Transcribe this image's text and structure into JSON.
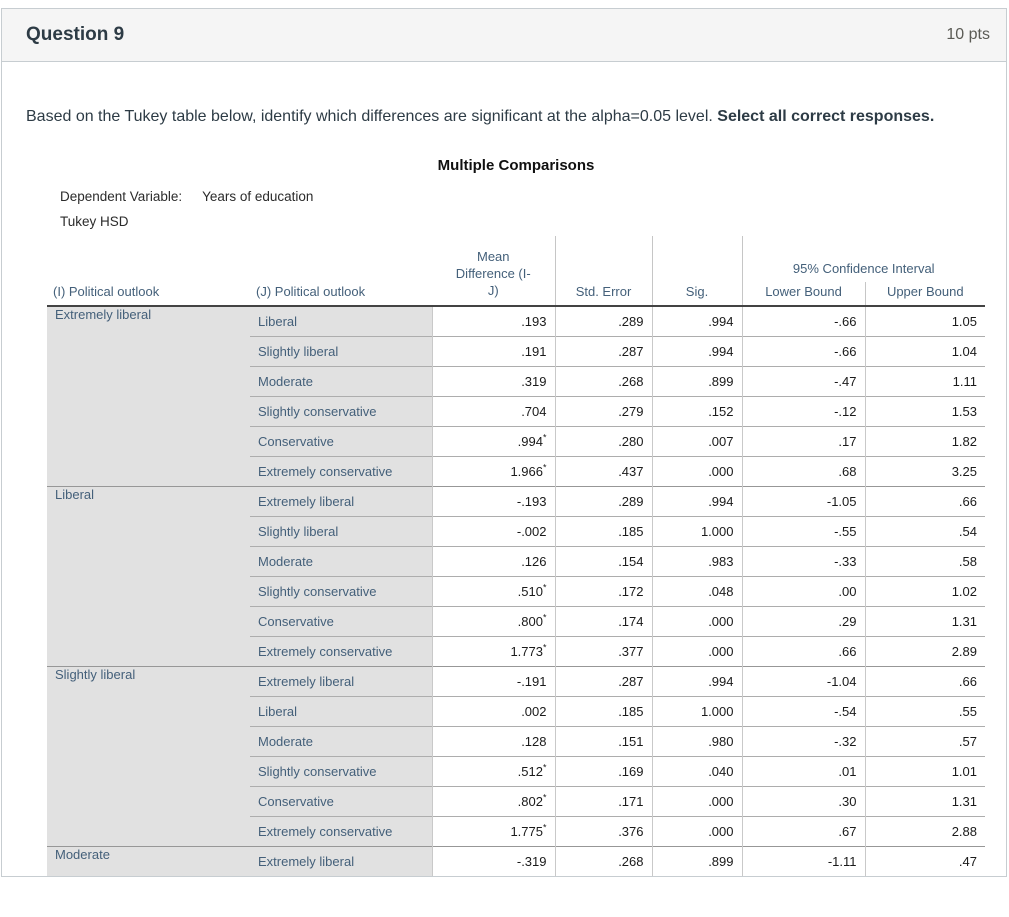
{
  "question": {
    "title": "Question 9",
    "points": "10 pts",
    "prompt_regular": "Based on the Tukey table below, identify which differences are significant at the alpha=0.05 level. ",
    "prompt_bold": "Select all correct responses."
  },
  "spss": {
    "title": "Multiple Comparisons",
    "dependent_variable_label": "Dependent Variable:",
    "dependent_variable_value": "Years of education",
    "method": "Tukey HSD",
    "columns": {
      "i": "(I) Political outlook",
      "j": "(J) Political outlook",
      "mean_diff": "Mean\nDifference (I-\nJ)",
      "std_error": "Std. Error",
      "sig": "Sig.",
      "ci_spanner": "95% Confidence Interval",
      "lower": "Lower Bound",
      "upper": "Upper Bound"
    },
    "colors": {
      "label_text": "#44607a",
      "label_bg": "#e1e1e1",
      "header_rule": "#434343"
    },
    "groups": [
      {
        "i": "Extremely liberal",
        "rows": [
          {
            "j": "Liberal",
            "mean": ".193",
            "star": false,
            "se": ".289",
            "sig": ".994",
            "lower": "-.66",
            "upper": "1.05"
          },
          {
            "j": "Slightly liberal",
            "mean": ".191",
            "star": false,
            "se": ".287",
            "sig": ".994",
            "lower": "-.66",
            "upper": "1.04"
          },
          {
            "j": "Moderate",
            "mean": ".319",
            "star": false,
            "se": ".268",
            "sig": ".899",
            "lower": "-.47",
            "upper": "1.11"
          },
          {
            "j": "Slightly conservative",
            "mean": ".704",
            "star": false,
            "se": ".279",
            "sig": ".152",
            "lower": "-.12",
            "upper": "1.53"
          },
          {
            "j": "Conservative",
            "mean": ".994",
            "star": true,
            "se": ".280",
            "sig": ".007",
            "lower": ".17",
            "upper": "1.82"
          },
          {
            "j": "Extremely conservative",
            "mean": "1.966",
            "star": true,
            "se": ".437",
            "sig": ".000",
            "lower": ".68",
            "upper": "3.25"
          }
        ]
      },
      {
        "i": "Liberal",
        "rows": [
          {
            "j": "Extremely liberal",
            "mean": "-.193",
            "star": false,
            "se": ".289",
            "sig": ".994",
            "lower": "-1.05",
            "upper": ".66"
          },
          {
            "j": "Slightly liberal",
            "mean": "-.002",
            "star": false,
            "se": ".185",
            "sig": "1.000",
            "lower": "-.55",
            "upper": ".54"
          },
          {
            "j": "Moderate",
            "mean": ".126",
            "star": false,
            "se": ".154",
            "sig": ".983",
            "lower": "-.33",
            "upper": ".58"
          },
          {
            "j": "Slightly conservative",
            "mean": ".510",
            "star": true,
            "se": ".172",
            "sig": ".048",
            "lower": ".00",
            "upper": "1.02"
          },
          {
            "j": "Conservative",
            "mean": ".800",
            "star": true,
            "se": ".174",
            "sig": ".000",
            "lower": ".29",
            "upper": "1.31"
          },
          {
            "j": "Extremely conservative",
            "mean": "1.773",
            "star": true,
            "se": ".377",
            "sig": ".000",
            "lower": ".66",
            "upper": "2.89"
          }
        ]
      },
      {
        "i": "Slightly liberal",
        "rows": [
          {
            "j": "Extremely liberal",
            "mean": "-.191",
            "star": false,
            "se": ".287",
            "sig": ".994",
            "lower": "-1.04",
            "upper": ".66"
          },
          {
            "j": "Liberal",
            "mean": ".002",
            "star": false,
            "se": ".185",
            "sig": "1.000",
            "lower": "-.54",
            "upper": ".55"
          },
          {
            "j": "Moderate",
            "mean": ".128",
            "star": false,
            "se": ".151",
            "sig": ".980",
            "lower": "-.32",
            "upper": ".57"
          },
          {
            "j": "Slightly conservative",
            "mean": ".512",
            "star": true,
            "se": ".169",
            "sig": ".040",
            "lower": ".01",
            "upper": "1.01"
          },
          {
            "j": "Conservative",
            "mean": ".802",
            "star": true,
            "se": ".171",
            "sig": ".000",
            "lower": ".30",
            "upper": "1.31"
          },
          {
            "j": "Extremely conservative",
            "mean": "1.775",
            "star": true,
            "se": ".376",
            "sig": ".000",
            "lower": ".67",
            "upper": "2.88"
          }
        ]
      },
      {
        "i": "Moderate",
        "rows": [
          {
            "j": "Extremely liberal",
            "mean": "-.319",
            "star": false,
            "se": ".268",
            "sig": ".899",
            "lower": "-1.11",
            "upper": ".47"
          }
        ]
      }
    ]
  }
}
